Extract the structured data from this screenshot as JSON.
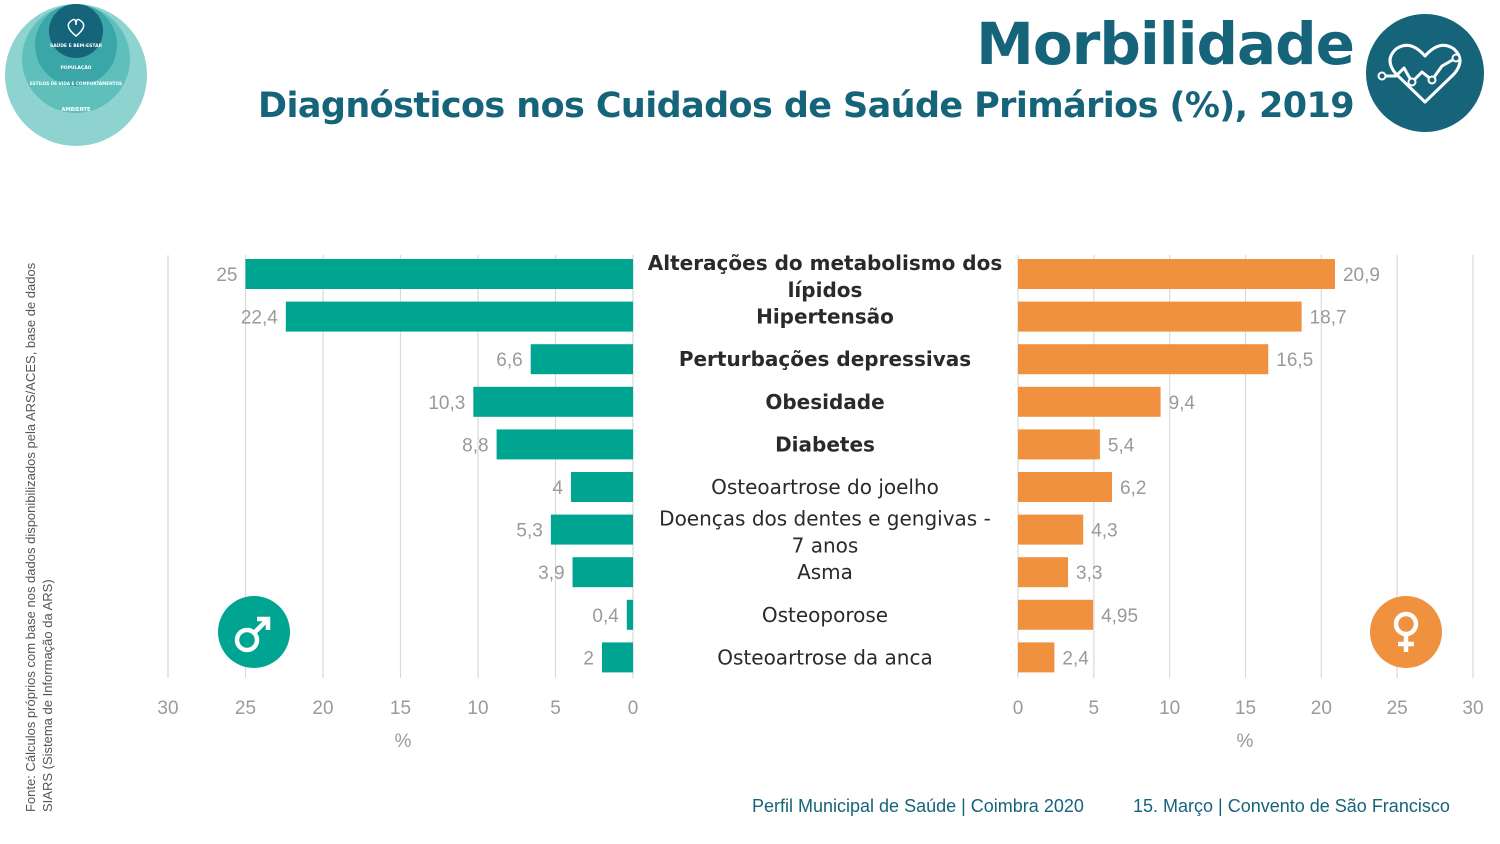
{
  "header": {
    "title": "Morbilidade",
    "subtitle": "Diagnósticos nos Cuidados de Saúde Primários (%), 2019"
  },
  "logo": {
    "rings": [
      "SAÚDE E BEM-ESTAR",
      "POPULAÇÃO",
      "ESTILOS DE VIDA E COMPORTAMENTOS",
      "AMBIENTE"
    ],
    "colors": [
      "#15647a",
      "#3aa6a8",
      "#5fbfbb",
      "#8ed3cf"
    ]
  },
  "heart_icon": "heart-pulse-icon",
  "source_note": "Fonte: Cálculos próprios com base nos dados disponibilizados pela ARS/ACES, base de dados SIARS (Sistema de Informação da ARS)",
  "footer": {
    "left": "Perfil Municipal de Saúde | Coimbra 2020",
    "right": "15. Março | Convento de São Francisco"
  },
  "chart_data": {
    "type": "bar",
    "orientation": "horizontal-butterfly",
    "categories": [
      "Alterações do metabolismo dos lípidos",
      "Hipertensão",
      "Perturbações depressivas",
      "Obesidade",
      "Diabetes",
      "Osteoartrose do joelho",
      "Doenças dos dentes e gengivas - 7 anos",
      "Asma",
      "Osteoporose",
      "Osteoartrose da anca"
    ],
    "category_lines": [
      [
        "Alterações do metabolismo dos",
        "lípidos"
      ],
      [
        "Hipertensão"
      ],
      [
        "Perturbações depressivas"
      ],
      [
        "Obesidade"
      ],
      [
        "Diabetes"
      ],
      [
        "Osteoartrose do joelho"
      ],
      [
        "Doenças dos dentes e gengivas -",
        "7 anos"
      ],
      [
        "Asma"
      ],
      [
        "Osteoporose"
      ],
      [
        "Osteoartrose da anca"
      ]
    ],
    "bold_categories": [
      0,
      1,
      2,
      3,
      4
    ],
    "series": [
      {
        "icon": "male-symbol-icon",
        "color": "#00a591",
        "values": [
          25,
          22.4,
          6.6,
          10.3,
          8.8,
          4,
          5.3,
          3.9,
          0.4,
          2
        ],
        "labels": [
          "25",
          "22,4",
          "6,6",
          "10,3",
          "8,8",
          "4",
          "5,3",
          "3,9",
          "0,4",
          "2"
        ]
      },
      {
        "icon": "female-symbol-icon",
        "color": "#f0913f",
        "values": [
          20.9,
          18.7,
          16.5,
          9.4,
          5.4,
          6.2,
          4.3,
          3.3,
          4.95,
          2.4
        ],
        "labels": [
          "20,9",
          "18,7",
          "16,5",
          "9,4",
          "5,4",
          "6,2",
          "4,3",
          "3,3",
          "4,95",
          "2,4"
        ]
      }
    ],
    "xlim": [
      0,
      30
    ],
    "xticks": [
      "0",
      "5",
      "10",
      "15",
      "20",
      "25",
      "30"
    ],
    "xlabel": "%",
    "grid": true
  }
}
